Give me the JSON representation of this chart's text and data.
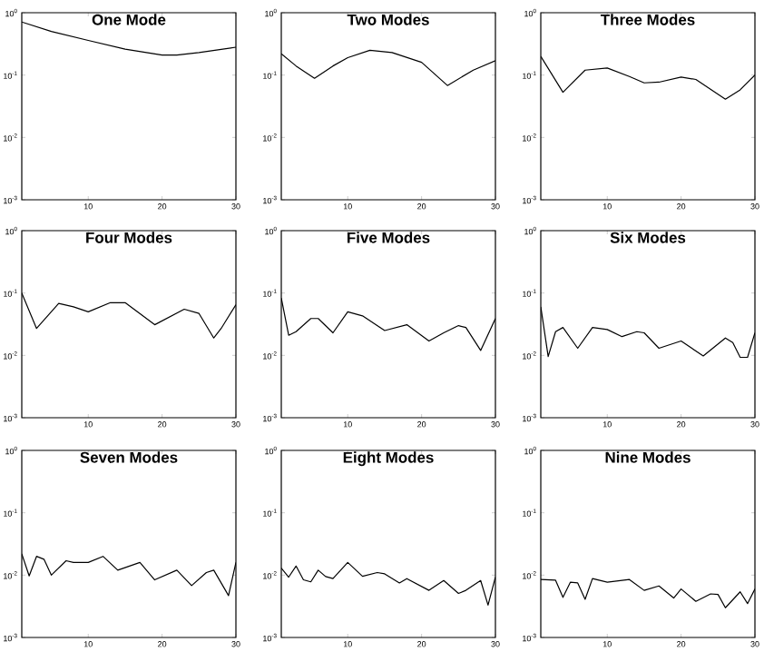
{
  "chart_data": [
    {
      "type": "line",
      "title": "One Mode",
      "color": "#000000",
      "log": "y",
      "xlim": [
        1,
        30
      ],
      "xticks": [
        10,
        20,
        30
      ],
      "ylim": [
        0.001,
        1
      ],
      "yticks": [
        {
          "value": 1,
          "label": "10$^{0}$"
        },
        {
          "value": 0.1,
          "label": "10$^{-1}$"
        },
        {
          "value": 0.01,
          "label": "10$^{-2}$"
        },
        {
          "value": 0.001,
          "label": "10$^{-3}$"
        }
      ],
      "x": [
        1,
        5,
        10,
        15,
        20,
        22,
        25,
        30
      ],
      "values": [
        0.71,
        0.5,
        0.36,
        0.26,
        0.21,
        0.21,
        0.23,
        0.28
      ]
    },
    {
      "type": "line",
      "title": "Two Modes",
      "color": "#000000",
      "log": "y",
      "xlim": [
        1,
        30
      ],
      "xticks": [
        10,
        20,
        30
      ],
      "ylim": [
        0.001,
        1
      ],
      "yticks": [
        {
          "value": 1,
          "label": "10$^{0}$"
        },
        {
          "value": 0.1,
          "label": "10$^{-1}$"
        },
        {
          "value": 0.01,
          "label": "10$^{-2}$"
        },
        {
          "value": 0.001,
          "label": "10$^{-3}$"
        }
      ],
      "x": [
        1,
        3,
        5.5,
        8,
        10,
        13,
        16,
        20,
        23.5,
        27,
        30
      ],
      "values": [
        0.22,
        0.14,
        0.089,
        0.14,
        0.19,
        0.25,
        0.23,
        0.16,
        0.068,
        0.12,
        0.17
      ]
    },
    {
      "type": "line",
      "title": "Three Modes",
      "color": "#000000",
      "log": "y",
      "xlim": [
        1,
        30
      ],
      "xticks": [
        10,
        20,
        30
      ],
      "ylim": [
        0.001,
        1
      ],
      "yticks": [
        {
          "value": 1,
          "label": "10$^{0}$"
        },
        {
          "value": 0.1,
          "label": "10$^{-1}$"
        },
        {
          "value": 0.01,
          "label": "10$^{-2}$"
        },
        {
          "value": 0.001,
          "label": "10$^{-3}$"
        }
      ],
      "x": [
        1,
        4,
        7,
        10,
        13,
        15,
        17,
        20,
        22,
        26,
        28,
        30
      ],
      "values": [
        0.2,
        0.053,
        0.12,
        0.13,
        0.095,
        0.075,
        0.077,
        0.093,
        0.085,
        0.041,
        0.058,
        0.1
      ]
    },
    {
      "type": "line",
      "title": "Four Modes",
      "color": "#000000",
      "log": "y",
      "xlim": [
        1,
        30
      ],
      "xticks": [
        10,
        20,
        30
      ],
      "ylim": [
        0.001,
        1
      ],
      "yticks": [
        {
          "value": 1,
          "label": "10$^{0}$"
        },
        {
          "value": 0.1,
          "label": "10$^{-1}$"
        },
        {
          "value": 0.01,
          "label": "10$^{-2}$"
        },
        {
          "value": 0.001,
          "label": "10$^{-3}$"
        }
      ],
      "x": [
        1,
        3,
        6,
        8,
        10,
        13,
        15,
        19,
        23,
        25,
        27,
        28,
        30
      ],
      "values": [
        0.1,
        0.027,
        0.068,
        0.06,
        0.05,
        0.07,
        0.07,
        0.031,
        0.055,
        0.047,
        0.019,
        0.027,
        0.065
      ]
    },
    {
      "type": "line",
      "title": "Five Modes",
      "color": "#000000",
      "log": "y",
      "xlim": [
        1,
        30
      ],
      "xticks": [
        10,
        20,
        30
      ],
      "ylim": [
        0.001,
        1
      ],
      "yticks": [
        {
          "value": 1,
          "label": "10$^{0}$"
        },
        {
          "value": 0.1,
          "label": "10$^{-1}$"
        },
        {
          "value": 0.01,
          "label": "10$^{-2}$"
        },
        {
          "value": 0.001,
          "label": "10$^{-3}$"
        }
      ],
      "x": [
        1,
        2,
        3,
        5,
        6,
        8,
        10,
        12,
        15,
        18,
        21,
        23,
        25,
        26,
        28,
        30
      ],
      "values": [
        0.083,
        0.021,
        0.024,
        0.039,
        0.039,
        0.023,
        0.05,
        0.043,
        0.025,
        0.031,
        0.017,
        0.023,
        0.03,
        0.028,
        0.012,
        0.039
      ]
    },
    {
      "type": "line",
      "title": "Six Modes",
      "color": "#000000",
      "log": "y",
      "xlim": [
        1,
        30
      ],
      "xticks": [
        10,
        20,
        30
      ],
      "ylim": [
        0.001,
        1
      ],
      "yticks": [
        {
          "value": 1,
          "label": "10$^{0}$"
        },
        {
          "value": 0.1,
          "label": "10$^{-1}$"
        },
        {
          "value": 0.01,
          "label": "10$^{-2}$"
        },
        {
          "value": 0.001,
          "label": "10$^{-3}$"
        }
      ],
      "x": [
        1,
        2,
        3,
        4,
        6,
        8,
        10,
        12,
        14,
        15,
        17,
        20,
        23,
        26,
        27,
        28,
        29,
        30
      ],
      "values": [
        0.06,
        0.0096,
        0.024,
        0.028,
        0.013,
        0.028,
        0.026,
        0.02,
        0.024,
        0.023,
        0.013,
        0.017,
        0.0098,
        0.019,
        0.016,
        0.0093,
        0.0093,
        0.023
      ]
    },
    {
      "type": "line",
      "title": "Seven Modes",
      "color": "#000000",
      "log": "y",
      "xlim": [
        1,
        30
      ],
      "xticks": [
        10,
        20,
        30
      ],
      "ylim": [
        0.001,
        1
      ],
      "yticks": [
        {
          "value": 1,
          "label": "10$^{0}$"
        },
        {
          "value": 0.1,
          "label": "10$^{-1}$"
        },
        {
          "value": 0.01,
          "label": "10$^{-2}$"
        },
        {
          "value": 0.001,
          "label": "10$^{-3}$"
        }
      ],
      "x": [
        1,
        2,
        3,
        4,
        5,
        7,
        8,
        10,
        12,
        14,
        17,
        19,
        22,
        24,
        26,
        27,
        29,
        30
      ],
      "values": [
        0.022,
        0.0097,
        0.02,
        0.018,
        0.01,
        0.017,
        0.016,
        0.016,
        0.02,
        0.012,
        0.016,
        0.0084,
        0.012,
        0.0068,
        0.011,
        0.012,
        0.0047,
        0.016
      ]
    },
    {
      "type": "line",
      "title": "Eight Modes",
      "color": "#000000",
      "log": "y",
      "xlim": [
        1,
        30
      ],
      "xticks": [
        10,
        20,
        30
      ],
      "ylim": [
        0.001,
        1
      ],
      "yticks": [
        {
          "value": 1,
          "label": "10$^{0}$"
        },
        {
          "value": 0.1,
          "label": "10$^{-1}$"
        },
        {
          "value": 0.01,
          "label": "10$^{-2}$"
        },
        {
          "value": 0.001,
          "label": "10$^{-3}$"
        }
      ],
      "x": [
        1,
        2,
        3,
        4,
        5,
        6,
        7,
        8,
        10,
        12,
        14,
        15,
        17,
        18,
        21,
        23,
        25,
        26,
        28,
        29,
        30
      ],
      "values": [
        0.013,
        0.0093,
        0.014,
        0.0084,
        0.0078,
        0.012,
        0.0095,
        0.0088,
        0.016,
        0.0096,
        0.011,
        0.0105,
        0.0075,
        0.0088,
        0.0057,
        0.0082,
        0.0051,
        0.0057,
        0.0082,
        0.0033,
        0.0093
      ]
    },
    {
      "type": "line",
      "title": "Nine Modes",
      "color": "#000000",
      "log": "y",
      "xlim": [
        1,
        30
      ],
      "xticks": [
        10,
        20,
        30
      ],
      "ylim": [
        0.001,
        1
      ],
      "yticks": [
        {
          "value": 1,
          "label": "10$^{0}$"
        },
        {
          "value": 0.1,
          "label": "10$^{-1}$"
        },
        {
          "value": 0.01,
          "label": "10$^{-2}$"
        },
        {
          "value": 0.001,
          "label": "10$^{-3}$"
        }
      ],
      "x": [
        1,
        3,
        4,
        5,
        6,
        7,
        8,
        10,
        13,
        15,
        17,
        19,
        20,
        22,
        24,
        25,
        26,
        28,
        29,
        30
      ],
      "values": [
        0.0085,
        0.0083,
        0.0044,
        0.0077,
        0.0075,
        0.0041,
        0.0088,
        0.0077,
        0.0085,
        0.0057,
        0.0067,
        0.0043,
        0.006,
        0.0038,
        0.005,
        0.0049,
        0.003,
        0.0054,
        0.0035,
        0.006
      ]
    }
  ]
}
